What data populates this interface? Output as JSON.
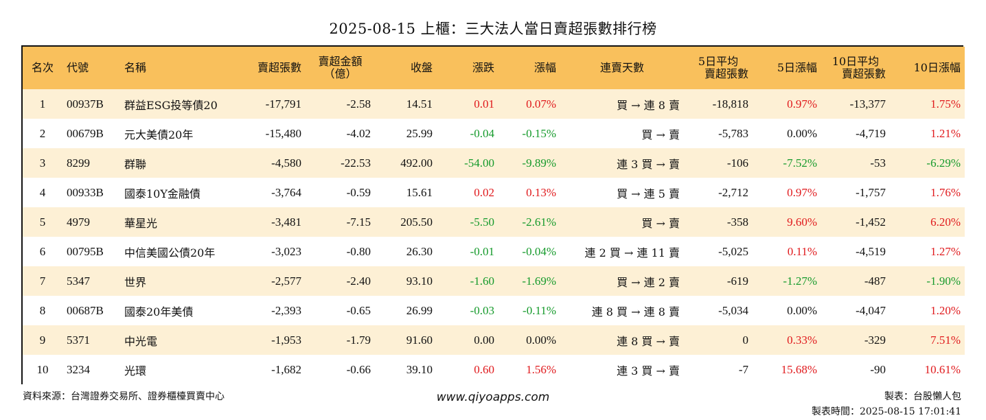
{
  "title": "2025-08-15 上櫃：三大法人當日賣超張數排行榜",
  "headers": {
    "rank": "名次",
    "code": "代號",
    "name": "名稱",
    "sell_lots": "賣超張數",
    "sell_amount_1": "賣超金額",
    "sell_amount_2": "（億）",
    "close": "收盤",
    "change": "漲跌",
    "pct": "漲幅",
    "streak": "連賣天數",
    "avg5_1": "5日平均",
    "avg5_2": "賣超張數",
    "pct5": "5日漲幅",
    "avg10_1": "10日平均",
    "avg10_2": "賣超張數",
    "pct10": "10日漲幅"
  },
  "rows": [
    {
      "rank": "1",
      "code": "00937B",
      "name": "群益ESG投等債20",
      "sell": "-17,791",
      "amount": "-2.58",
      "close": "14.51",
      "change": "0.01",
      "pct": "0.07%",
      "streak": "買 → 連 8 賣",
      "avg5": "-18,818",
      "pct5": "0.97%",
      "avg10": "-13,377",
      "pct10": "1.75%",
      "chg_color": "pos",
      "pct5_color": "pos",
      "pct10_color": "pos"
    },
    {
      "rank": "2",
      "code": "00679B",
      "name": "元大美債20年",
      "sell": "-15,480",
      "amount": "-4.02",
      "close": "25.99",
      "change": "-0.04",
      "pct": "-0.15%",
      "streak": "買 → 賣",
      "avg5": "-5,783",
      "pct5": "0.00%",
      "avg10": "-4,719",
      "pct10": "1.21%",
      "chg_color": "neg",
      "pct5_color": "neutral",
      "pct10_color": "pos"
    },
    {
      "rank": "3",
      "code": "8299",
      "name": "群聯",
      "sell": "-4,580",
      "amount": "-22.53",
      "close": "492.00",
      "change": "-54.00",
      "pct": "-9.89%",
      "streak": "連 3 買 → 賣",
      "avg5": "-106",
      "pct5": "-7.52%",
      "avg10": "-53",
      "pct10": "-6.29%",
      "chg_color": "neg",
      "pct5_color": "neg",
      "pct10_color": "neg"
    },
    {
      "rank": "4",
      "code": "00933B",
      "name": "國泰10Y金融債",
      "sell": "-3,764",
      "amount": "-0.59",
      "close": "15.61",
      "change": "0.02",
      "pct": "0.13%",
      "streak": "買 → 連 5 賣",
      "avg5": "-2,712",
      "pct5": "0.97%",
      "avg10": "-1,757",
      "pct10": "1.76%",
      "chg_color": "pos",
      "pct5_color": "pos",
      "pct10_color": "pos"
    },
    {
      "rank": "5",
      "code": "4979",
      "name": "華星光",
      "sell": "-3,481",
      "amount": "-7.15",
      "close": "205.50",
      "change": "-5.50",
      "pct": "-2.61%",
      "streak": "買 → 賣",
      "avg5": "-358",
      "pct5": "9.60%",
      "avg10": "-1,452",
      "pct10": "6.20%",
      "chg_color": "neg",
      "pct5_color": "pos",
      "pct10_color": "pos"
    },
    {
      "rank": "6",
      "code": "00795B",
      "name": "中信美國公債20年",
      "sell": "-3,023",
      "amount": "-0.80",
      "close": "26.30",
      "change": "-0.01",
      "pct": "-0.04%",
      "streak": "連 2 買 → 連 11 賣",
      "avg5": "-5,025",
      "pct5": "0.11%",
      "avg10": "-4,519",
      "pct10": "1.27%",
      "chg_color": "neg",
      "pct5_color": "pos",
      "pct10_color": "pos"
    },
    {
      "rank": "7",
      "code": "5347",
      "name": "世界",
      "sell": "-2,577",
      "amount": "-2.40",
      "close": "93.10",
      "change": "-1.60",
      "pct": "-1.69%",
      "streak": "買 → 連 2 賣",
      "avg5": "-619",
      "pct5": "-1.27%",
      "avg10": "-487",
      "pct10": "-1.90%",
      "chg_color": "neg",
      "pct5_color": "neg",
      "pct10_color": "neg"
    },
    {
      "rank": "8",
      "code": "00687B",
      "name": "國泰20年美債",
      "sell": "-2,393",
      "amount": "-0.65",
      "close": "26.99",
      "change": "-0.03",
      "pct": "-0.11%",
      "streak": "連 8 買 → 連 8 賣",
      "avg5": "-5,034",
      "pct5": "0.00%",
      "avg10": "-4,047",
      "pct10": "1.20%",
      "chg_color": "neg",
      "pct5_color": "neutral",
      "pct10_color": "pos"
    },
    {
      "rank": "9",
      "code": "5371",
      "name": "中光電",
      "sell": "-1,953",
      "amount": "-1.79",
      "close": "91.60",
      "change": "0.00",
      "pct": "0.00%",
      "streak": "連 8 買 → 賣",
      "avg5": "0",
      "pct5": "0.33%",
      "avg10": "-329",
      "pct10": "7.51%",
      "chg_color": "neutral",
      "pct5_color": "pos",
      "pct10_color": "pos"
    },
    {
      "rank": "10",
      "code": "3234",
      "name": "光環",
      "sell": "-1,682",
      "amount": "-0.66",
      "close": "39.10",
      "change": "0.60",
      "pct": "1.56%",
      "streak": "連 3 買 → 賣",
      "avg5": "-7",
      "pct5": "15.68%",
      "avg10": "-90",
      "pct10": "10.61%",
      "chg_color": "pos",
      "pct5_color": "pos",
      "pct10_color": "pos"
    }
  ],
  "footer": {
    "source": "資料來源：台灣證券交易所、證券櫃檯買賣中心",
    "website": "www.qiyoapps.com",
    "author": "製表：台股懶人包",
    "time": "製表時間：2025-08-15 17:01:41"
  },
  "colors": {
    "positive": "#e0191c",
    "negative": "#159a2b",
    "header_bg": "#f9c05c",
    "stripe": "#fdf0d5"
  }
}
